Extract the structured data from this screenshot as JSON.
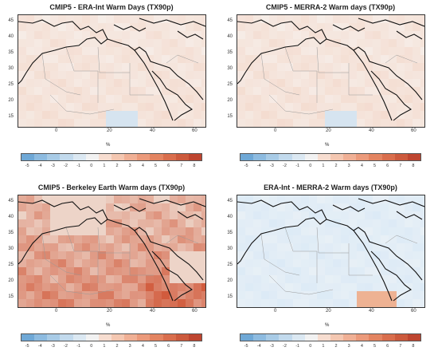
{
  "panels": [
    {
      "id": "p1",
      "title": "CMIP5 - ERA-Int   Warm Days (TX90p)",
      "tone": "light-warm"
    },
    {
      "id": "p2",
      "title": "CMIP5 - MERRA-2   Warm days (TX90p)",
      "tone": "light-warm"
    },
    {
      "id": "p3",
      "title": "CMIP5 - Berkeley Earth   Warm days (TX90p)",
      "tone": "warm"
    },
    {
      "id": "p4",
      "title": "ERA-Int - MERRA-2   Warm days (TX90p)",
      "tone": "cool"
    }
  ],
  "axis": {
    "x_ticks": [
      "0",
      "20",
      "40",
      "60"
    ],
    "y_ticks": [
      "45",
      "40",
      "35",
      "30",
      "25",
      "20",
      "15"
    ],
    "unit": "%"
  },
  "colorbar": {
    "labels": [
      "-5",
      "-4",
      "-3",
      "-2",
      "-1",
      "0",
      "1",
      "2",
      "3",
      "4",
      "5",
      "6",
      "7",
      "8"
    ],
    "colors": [
      "#6fa8d6",
      "#8dbbe0",
      "#a8cbe6",
      "#c2daed",
      "#dbe8f2",
      "#f2f2f2",
      "#f7ddd0",
      "#f4c7b1",
      "#f0b095",
      "#eb9a7b",
      "#e38461",
      "#d96e4d",
      "#cc5a3d",
      "#be4530"
    ]
  }
}
